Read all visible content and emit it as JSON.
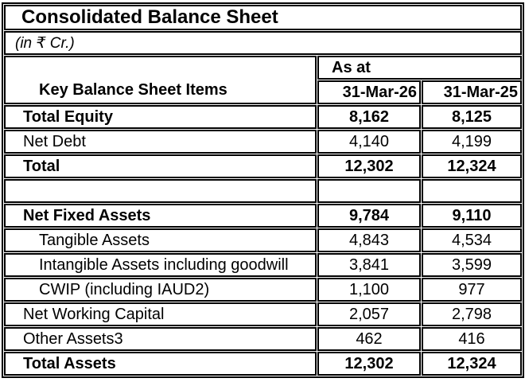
{
  "title": "Consolidated Balance Sheet",
  "subtitle": "(in ₹ Cr.)",
  "header": {
    "items_label": "Key Balance Sheet Items",
    "as_at": "As at",
    "period_1": "31-Mar-26",
    "period_2": "31-Mar-25"
  },
  "rows": [
    {
      "label": "Total Equity",
      "v1": "8,162",
      "v2": "8,125",
      "bold": true,
      "indent": 0,
      "blank": false
    },
    {
      "label": "Net Debt",
      "v1": "4,140",
      "v2": "4,199",
      "bold": false,
      "indent": 0,
      "blank": false
    },
    {
      "label": "Total",
      "v1": "12,302",
      "v2": "12,324",
      "bold": true,
      "indent": 0,
      "blank": false
    },
    {
      "label": "",
      "v1": "",
      "v2": "",
      "bold": false,
      "indent": 0,
      "blank": true
    },
    {
      "label": "Net Fixed Assets",
      "v1": "9,784",
      "v2": "9,110",
      "bold": true,
      "indent": 0,
      "blank": false
    },
    {
      "label": "Tangible Assets",
      "v1": "4,843",
      "v2": "4,534",
      "bold": false,
      "indent": 1,
      "blank": false
    },
    {
      "label": "Intangible Assets including goodwill",
      "v1": "3,841",
      "v2": "3,599",
      "bold": false,
      "indent": 1,
      "blank": false
    },
    {
      "label": "CWIP (including IAUD2)",
      "v1": "1,100",
      "v2": "977",
      "bold": false,
      "indent": 1,
      "blank": false
    },
    {
      "label": "Net Working Capital",
      "v1": "2,057",
      "v2": "2,798",
      "bold": false,
      "indent": 0,
      "blank": false
    },
    {
      "label": "Other Assets3",
      "v1": "462",
      "v2": "416",
      "bold": false,
      "indent": 0,
      "blank": false
    },
    {
      "label": "Total Assets",
      "v1": "12,302",
      "v2": "12,324",
      "bold": true,
      "indent": 0,
      "blank": false
    }
  ],
  "colors": {
    "text": "#000000",
    "border": "#000000",
    "background": "#ffffff"
  }
}
